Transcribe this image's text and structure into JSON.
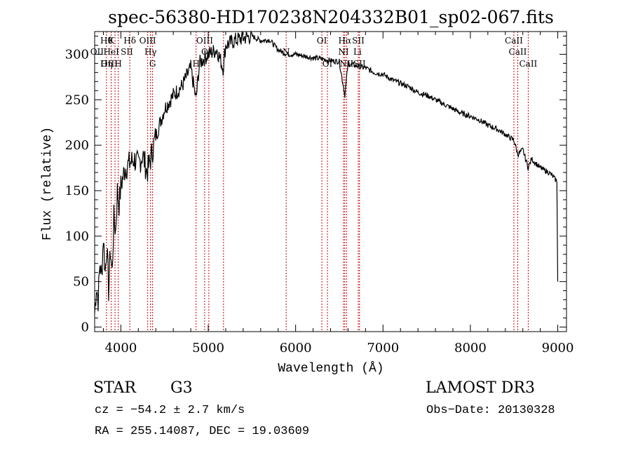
{
  "chart_data": {
    "type": "line",
    "title": "spec-56380-HD170238N204332B01_sp02-067.fits",
    "xlabel": "Wavelength (Å)",
    "ylabel": "Flux (relative)",
    "xlim": [
      3700,
      9100
    ],
    "ylim": [
      -5,
      325
    ],
    "x_ticks": [
      4000,
      5000,
      6000,
      7000,
      8000,
      9000
    ],
    "y_ticks": [
      0,
      50,
      100,
      150,
      200,
      250,
      300
    ],
    "grid": false,
    "line_color": "#000000",
    "marker_color": "#cc0000",
    "series": [
      {
        "x": [
          3700,
          3720,
          3740,
          3760,
          3780,
          3800,
          3820,
          3840,
          3860,
          3880,
          3900,
          3920,
          3940,
          3960,
          3980,
          4000,
          4050,
          4100,
          4150,
          4200,
          4250,
          4300,
          4340,
          4400,
          4450,
          4500,
          4600,
          4700,
          4800,
          4860,
          4900,
          4950,
          5000,
          5100,
          5170,
          5200,
          5300,
          5400,
          5500,
          5600,
          5700,
          5800,
          5900,
          6000,
          6100,
          6200,
          6300,
          6400,
          6500,
          6563,
          6600,
          6700,
          6800,
          6900,
          7000,
          7100,
          7200,
          7300,
          7400,
          7500,
          7600,
          7700,
          7800,
          7900,
          8000,
          8100,
          8200,
          8300,
          8400,
          8500,
          8542,
          8600,
          8662,
          8700,
          8800,
          8900,
          8950,
          8990,
          9000
        ],
        "y": [
          15,
          45,
          30,
          70,
          55,
          100,
          60,
          90,
          40,
          85,
          60,
          120,
          105,
          150,
          135,
          155,
          175,
          180,
          185,
          178,
          190,
          170,
          185,
          210,
          225,
          240,
          255,
          265,
          285,
          250,
          290,
          295,
          300,
          305,
          285,
          310,
          315,
          318,
          320,
          315,
          316,
          305,
          300,
          300,
          298,
          296,
          295,
          293,
          292,
          255,
          290,
          287,
          285,
          280,
          278,
          272,
          268,
          264,
          258,
          255,
          250,
          245,
          240,
          235,
          232,
          228,
          222,
          218,
          212,
          205,
          190,
          195,
          175,
          185,
          175,
          170,
          165,
          160,
          50
        ]
      }
    ],
    "line_markers": [
      {
        "wl": 3835,
        "label": "Hθ",
        "row": 0
      },
      {
        "wl": 3889,
        "label": "K",
        "row": 0
      },
      {
        "wl": 3933,
        "label": "",
        "row": 0
      },
      {
        "wl": 3970,
        "label": "",
        "row": 0
      },
      {
        "wl": 4102,
        "label": "Hδ",
        "row": 0
      },
      {
        "wl": 4307,
        "label": "OIII",
        "row": 0
      },
      {
        "wl": 4340,
        "label": "Hγ",
        "row": 1
      },
      {
        "wl": 4363,
        "label": "G",
        "row": 2
      },
      {
        "wl": 4861,
        "label": "",
        "row": 2
      },
      {
        "wl": 4959,
        "label": "OIII",
        "row": 0
      },
      {
        "wl": 5007,
        "label": "",
        "row": 1
      },
      {
        "wl": 5175,
        "label": "",
        "row": 1
      },
      {
        "wl": 5892,
        "label": "",
        "row": 1
      },
      {
        "wl": 6300,
        "label": "OI",
        "row": 0
      },
      {
        "wl": 6364,
        "label": "",
        "row": 1
      },
      {
        "wl": 6548,
        "label": "",
        "row": 1
      },
      {
        "wl": 6563,
        "label": "Hα",
        "row": 0
      },
      {
        "wl": 6583,
        "label": "",
        "row": 1
      },
      {
        "wl": 6717,
        "label": "SII",
        "row": 0
      },
      {
        "wl": 6731,
        "label": "",
        "row": 1
      },
      {
        "wl": 8498,
        "label": "CaII",
        "row": 0
      },
      {
        "wl": 8542,
        "label": "CaII",
        "row": 1
      },
      {
        "wl": 8662,
        "label": "CaII",
        "row": 2
      }
    ],
    "crowded_labels": [
      {
        "text": "OII",
        "near_wl": 3727,
        "row": 1
      },
      {
        "text": "HeI",
        "near_wl": 3890,
        "row": 1
      },
      {
        "text": "SII",
        "near_wl": 4069,
        "row": 1
      },
      {
        "text": "OIII",
        "near_wl": 3868,
        "row": 2
      },
      {
        "text": "Hη",
        "near_wl": 3835,
        "row": 2
      },
      {
        "text": "H",
        "near_wl": 3970,
        "row": 2
      },
      {
        "text": "O",
        "near_wl": 4959,
        "row": 1
      },
      {
        "text": "H",
        "near_wl": 4861,
        "row": 2
      },
      {
        "text": "N",
        "near_wl": 5892,
        "row": 1
      },
      {
        "text": "NI",
        "near_wl": 6548,
        "row": 1
      },
      {
        "text": "Li",
        "near_wl": 6708,
        "row": 1
      },
      {
        "text": "OI",
        "near_wl": 6364,
        "row": 2
      },
      {
        "text": "NII",
        "near_wl": 6583,
        "row": 2
      },
      {
        "text": "SII",
        "near_wl": 6731,
        "row": 2
      }
    ]
  },
  "info": {
    "object_class": "STAR",
    "subclass": "G3",
    "survey": "LAMOST DR3",
    "redshift": "cz = −54.2 ± 2.7 km/s",
    "obs_date": "Obs−Date: 20130328",
    "coords": "RA = 255.14087, DEC =  19.03609"
  }
}
